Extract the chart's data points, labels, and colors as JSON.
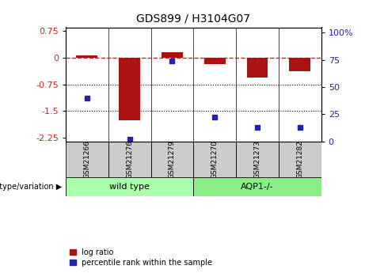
{
  "title": "GDS899 / H3104G07",
  "samples": [
    "GSM21266",
    "GSM21276",
    "GSM21279",
    "GSM21270",
    "GSM21273",
    "GSM21282"
  ],
  "log_ratio": [
    0.07,
    -1.75,
    0.15,
    -0.18,
    -0.55,
    -0.38
  ],
  "percentile_rank": [
    40,
    2,
    74,
    22,
    13,
    13
  ],
  "ylim_left": [
    -2.35,
    0.85
  ],
  "ylim_right": [
    0,
    105
  ],
  "yticks_left": [
    0.75,
    0,
    -0.75,
    -1.5,
    -2.25
  ],
  "yticks_right": [
    100,
    75,
    50,
    25,
    0
  ],
  "hlines": [
    -0.75,
    -1.5
  ],
  "bar_color": "#aa1111",
  "dot_color": "#2222aa",
  "ref_line_color": "#cc2222",
  "wt_color": "#aaffaa",
  "aqp_color": "#88ee88",
  "sample_bg": "#cccccc",
  "group_label": "genotype/variation",
  "legend_bar": "log ratio",
  "legend_dot": "percentile rank within the sample",
  "bar_width": 0.5,
  "group_spans": [
    {
      "name": "wild type",
      "start": 0,
      "end": 2
    },
    {
      "name": "AQP1-/-",
      "start": 3,
      "end": 5
    }
  ]
}
